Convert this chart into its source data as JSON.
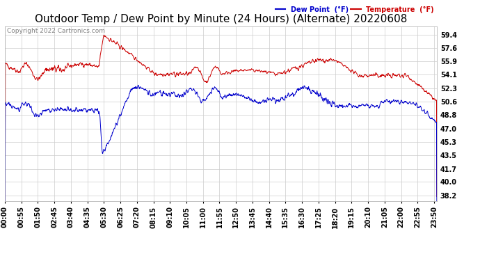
{
  "title": "Outdoor Temp / Dew Point by Minute (24 Hours) (Alternate) 20220608",
  "copyright": "Copyright 2022 Cartronics.com",
  "legend_dew": "Dew Point  (°F)",
  "legend_temp": "Temperature  (°F)",
  "yticks": [
    38.2,
    40.0,
    41.7,
    43.5,
    45.3,
    47.0,
    48.8,
    50.6,
    52.3,
    54.1,
    55.9,
    57.6,
    59.4
  ],
  "ylim": [
    37.5,
    60.5
  ],
  "bg_color": "#ffffff",
  "plot_bg": "#ffffff",
  "grid_color": "#cccccc",
  "temp_color": "#cc0000",
  "dew_color": "#0000cc",
  "title_fontsize": 11,
  "tick_fontsize": 7,
  "n_points": 1440,
  "xtick_interval": 55
}
